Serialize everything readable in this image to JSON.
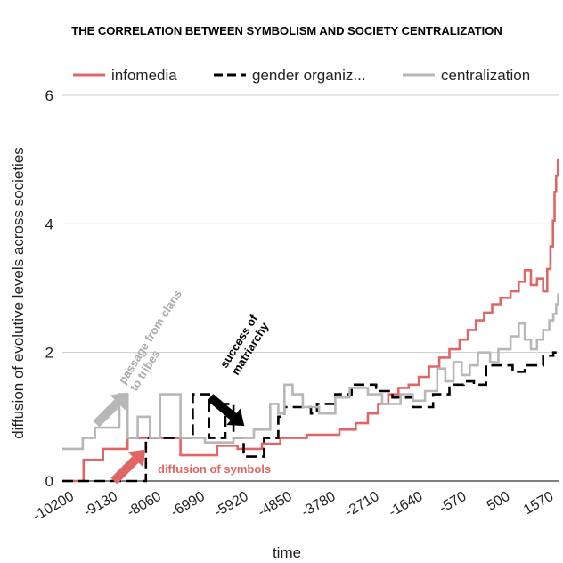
{
  "chart_data": {
    "type": "line",
    "title": "THE CORRELATION BETWEEN SYMBOLISM AND SOCIETY CENTRALIZATION",
    "xlabel": "time",
    "ylabel": "diffusion of evolutive levels across societies",
    "xlim": [
      -10200,
      2000
    ],
    "ylim": [
      0,
      6
    ],
    "grid": true,
    "legend_position": "top",
    "x_ticks": [
      "-10200",
      "-9130",
      "-8060",
      "-6990",
      "-5920",
      "-4850",
      "-3780",
      "-2710",
      "-1640",
      "-570",
      "500",
      "1570"
    ],
    "y_ticks": [
      "0",
      "2",
      "4",
      "6"
    ],
    "series": [
      {
        "name": "infomedia",
        "color": "#e06666",
        "dash": "solid",
        "points": [
          [
            -10200,
            0
          ],
          [
            -9680,
            0
          ],
          [
            -9680,
            0.33
          ],
          [
            -9200,
            0.33
          ],
          [
            -9200,
            0.5
          ],
          [
            -8600,
            0.5
          ],
          [
            -8600,
            0.67
          ],
          [
            -7300,
            0.67
          ],
          [
            -7300,
            0.4
          ],
          [
            -6400,
            0.4
          ],
          [
            -6400,
            0.55
          ],
          [
            -5900,
            0.55
          ],
          [
            -5900,
            0.5
          ],
          [
            -5300,
            0.5
          ],
          [
            -5300,
            0.58
          ],
          [
            -4850,
            0.58
          ],
          [
            -4850,
            0.67
          ],
          [
            -4200,
            0.67
          ],
          [
            -4200,
            0.72
          ],
          [
            -3400,
            0.72
          ],
          [
            -3400,
            0.8
          ],
          [
            -3000,
            0.8
          ],
          [
            -3000,
            0.9
          ],
          [
            -2700,
            0.9
          ],
          [
            -2700,
            1.05
          ],
          [
            -2450,
            1.05
          ],
          [
            -2450,
            1.2
          ],
          [
            -2200,
            1.2
          ],
          [
            -2200,
            1.35
          ],
          [
            -1950,
            1.35
          ],
          [
            -1950,
            1.45
          ],
          [
            -1700,
            1.45
          ],
          [
            -1700,
            1.5
          ],
          [
            -1450,
            1.5
          ],
          [
            -1450,
            1.62
          ],
          [
            -1200,
            1.62
          ],
          [
            -1200,
            1.78
          ],
          [
            -950,
            1.78
          ],
          [
            -950,
            1.92
          ],
          [
            -700,
            1.92
          ],
          [
            -700,
            2.05
          ],
          [
            -450,
            2.05
          ],
          [
            -450,
            2.2
          ],
          [
            -250,
            2.2
          ],
          [
            -250,
            2.35
          ],
          [
            -50,
            2.35
          ],
          [
            -50,
            2.5
          ],
          [
            150,
            2.5
          ],
          [
            150,
            2.62
          ],
          [
            350,
            2.62
          ],
          [
            350,
            2.75
          ],
          [
            550,
            2.75
          ],
          [
            550,
            2.85
          ],
          [
            800,
            2.85
          ],
          [
            800,
            2.95
          ],
          [
            1000,
            2.95
          ],
          [
            1000,
            3.1
          ],
          [
            1150,
            3.1
          ],
          [
            1150,
            3.28
          ],
          [
            1300,
            3.28
          ],
          [
            1300,
            3.05
          ],
          [
            1450,
            3.05
          ],
          [
            1450,
            3.15
          ],
          [
            1600,
            3.15
          ],
          [
            1600,
            2.95
          ],
          [
            1700,
            2.95
          ],
          [
            1700,
            3.3
          ],
          [
            1780,
            3.3
          ],
          [
            1780,
            3.65
          ],
          [
            1840,
            3.65
          ],
          [
            1840,
            4.05
          ],
          [
            1880,
            4.05
          ],
          [
            1880,
            4.5
          ],
          [
            1920,
            4.5
          ],
          [
            1920,
            4.75
          ],
          [
            1960,
            4.75
          ],
          [
            1960,
            5.0
          ],
          [
            2000,
            5.0
          ]
        ]
      },
      {
        "name": "gender organiz...",
        "color": "#000000",
        "dash": "dashed",
        "points": [
          [
            -10200,
            0
          ],
          [
            -8150,
            0
          ],
          [
            -8150,
            0.67
          ],
          [
            -7000,
            0.67
          ],
          [
            -7000,
            1.35
          ],
          [
            -6600,
            1.35
          ],
          [
            -6600,
            0.67
          ],
          [
            -6200,
            0.67
          ],
          [
            -6200,
            1.2
          ],
          [
            -6000,
            1.2
          ],
          [
            -6000,
            0.67
          ],
          [
            -5750,
            0.67
          ],
          [
            -5750,
            0.38
          ],
          [
            -5250,
            0.38
          ],
          [
            -5250,
            0.67
          ],
          [
            -4900,
            0.67
          ],
          [
            -4900,
            1.0
          ],
          [
            -4750,
            1.0
          ],
          [
            -4750,
            1.15
          ],
          [
            -4100,
            1.15
          ],
          [
            -4100,
            1.05
          ],
          [
            -3950,
            1.05
          ],
          [
            -3950,
            1.2
          ],
          [
            -3500,
            1.2
          ],
          [
            -3500,
            1.35
          ],
          [
            -3100,
            1.35
          ],
          [
            -3100,
            1.5
          ],
          [
            -2500,
            1.5
          ],
          [
            -2500,
            1.4
          ],
          [
            -2100,
            1.4
          ],
          [
            -2100,
            1.3
          ],
          [
            -1600,
            1.3
          ],
          [
            -1600,
            1.15
          ],
          [
            -1100,
            1.15
          ],
          [
            -1100,
            1.35
          ],
          [
            -700,
            1.35
          ],
          [
            -700,
            1.5
          ],
          [
            -350,
            1.5
          ],
          [
            -350,
            1.55
          ],
          [
            -100,
            1.55
          ],
          [
            -100,
            1.5
          ],
          [
            200,
            1.5
          ],
          [
            200,
            1.8
          ],
          [
            850,
            1.8
          ],
          [
            850,
            1.7
          ],
          [
            1150,
            1.7
          ],
          [
            1150,
            1.8
          ],
          [
            1600,
            1.8
          ],
          [
            1600,
            1.95
          ],
          [
            1850,
            1.95
          ],
          [
            1850,
            2.0
          ],
          [
            2000,
            2.0
          ]
        ]
      },
      {
        "name": "centralization",
        "color": "#b7b7b7",
        "dash": "solid",
        "points": [
          [
            -10200,
            0.5
          ],
          [
            -9700,
            0.5
          ],
          [
            -9700,
            0.67
          ],
          [
            -9400,
            0.67
          ],
          [
            -9400,
            0.83
          ],
          [
            -8800,
            0.83
          ],
          [
            -8800,
            1.35
          ],
          [
            -8600,
            1.35
          ],
          [
            -8600,
            0.67
          ],
          [
            -8350,
            0.67
          ],
          [
            -8350,
            1.0
          ],
          [
            -8050,
            1.0
          ],
          [
            -8050,
            0.67
          ],
          [
            -7800,
            0.67
          ],
          [
            -7800,
            1.35
          ],
          [
            -7300,
            1.35
          ],
          [
            -7300,
            0.67
          ],
          [
            -6700,
            0.67
          ],
          [
            -6700,
            0.6
          ],
          [
            -6000,
            0.6
          ],
          [
            -6000,
            0.67
          ],
          [
            -5500,
            0.67
          ],
          [
            -5500,
            0.8
          ],
          [
            -5100,
            0.8
          ],
          [
            -5100,
            1.2
          ],
          [
            -4900,
            1.2
          ],
          [
            -4900,
            1.05
          ],
          [
            -4750,
            1.05
          ],
          [
            -4750,
            1.5
          ],
          [
            -4550,
            1.5
          ],
          [
            -4550,
            1.35
          ],
          [
            -4300,
            1.35
          ],
          [
            -4300,
            1.15
          ],
          [
            -3900,
            1.15
          ],
          [
            -3900,
            1.05
          ],
          [
            -3500,
            1.05
          ],
          [
            -3500,
            1.3
          ],
          [
            -3150,
            1.3
          ],
          [
            -3150,
            1.45
          ],
          [
            -2700,
            1.45
          ],
          [
            -2700,
            1.35
          ],
          [
            -2350,
            1.35
          ],
          [
            -2350,
            1.2
          ],
          [
            -1900,
            1.2
          ],
          [
            -1900,
            1.35
          ],
          [
            -1600,
            1.35
          ],
          [
            -1600,
            1.25
          ],
          [
            -1300,
            1.25
          ],
          [
            -1300,
            1.4
          ],
          [
            -1000,
            1.4
          ],
          [
            -1000,
            1.75
          ],
          [
            -800,
            1.75
          ],
          [
            -800,
            1.55
          ],
          [
            -600,
            1.55
          ],
          [
            -600,
            1.85
          ],
          [
            -400,
            1.85
          ],
          [
            -400,
            1.65
          ],
          [
            -200,
            1.65
          ],
          [
            -200,
            1.8
          ],
          [
            0,
            1.8
          ],
          [
            0,
            2.0
          ],
          [
            300,
            2.0
          ],
          [
            300,
            1.85
          ],
          [
            500,
            1.85
          ],
          [
            500,
            2.05
          ],
          [
            800,
            2.05
          ],
          [
            800,
            2.25
          ],
          [
            1000,
            2.25
          ],
          [
            1000,
            2.45
          ],
          [
            1150,
            2.45
          ],
          [
            1150,
            2.2
          ],
          [
            1300,
            2.2
          ],
          [
            1300,
            2.05
          ],
          [
            1450,
            2.05
          ],
          [
            1450,
            2.2
          ],
          [
            1600,
            2.2
          ],
          [
            1600,
            2.35
          ],
          [
            1750,
            2.35
          ],
          [
            1750,
            2.5
          ],
          [
            1850,
            2.5
          ],
          [
            1850,
            2.6
          ],
          [
            1920,
            2.6
          ],
          [
            1920,
            2.75
          ],
          [
            1970,
            2.75
          ],
          [
            1970,
            2.9
          ],
          [
            2000,
            2.9
          ]
        ]
      }
    ],
    "annotations": [
      {
        "text": "diffusion of symbols",
        "color": "#e06666"
      },
      {
        "text_lines": [
          "success of",
          "matriarchy"
        ],
        "color": "#000000"
      },
      {
        "text_lines": [
          "passage from clans",
          "to tribes"
        ],
        "color": "#aaaaaa"
      }
    ]
  }
}
